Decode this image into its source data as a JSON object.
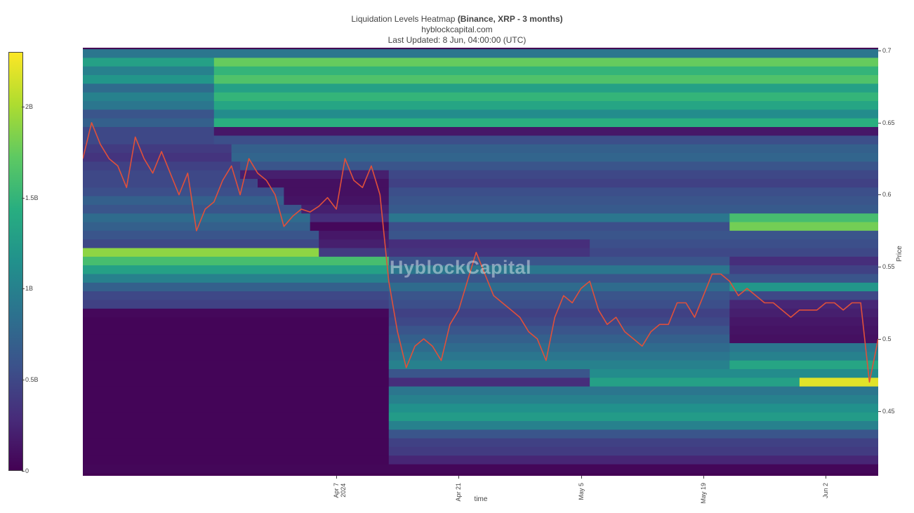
{
  "header": {
    "title_prefix": "Liquidation Levels Heatmap",
    "title_bold": "(Binance, XRP - 3 months)",
    "subtitle": "hyblockcapital.com",
    "updated": "Last Updated: 8 Jun, 04:00:00 (UTC)"
  },
  "watermark": "HyblockCapital",
  "colors": {
    "scale": [
      "#440154",
      "#472c7a",
      "#3b528b",
      "#2c728e",
      "#21918c",
      "#28ae80",
      "#5ec962",
      "#addc30",
      "#fde725"
    ],
    "candle": "#e0503a"
  },
  "chart_data": {
    "type": "heatmap",
    "title": "Liquidation Levels Heatmap (Binance, XRP - 3 months)",
    "xlabel": "time",
    "ylabel": "Price",
    "x_ticks": [
      "Apr 7\n2024",
      "Apr 21",
      "May 5",
      "May 19",
      "Jun 2"
    ],
    "y_ticks": [
      "0.7",
      "0.65",
      "0.6",
      "0.55",
      "0.5",
      "0.45"
    ],
    "ylim": [
      0.405,
      0.702
    ],
    "xlim": [
      "2024-03-09",
      "2024-06-08"
    ],
    "colorbar": {
      "ticks": [
        "0",
        "0.5B",
        "1B",
        "1.5B",
        "2B"
      ],
      "range": [
        0,
        2.3
      ]
    },
    "bands": [
      {
        "price": 0.698,
        "segments": [
          [
            "2024-03-09",
            "2024-06-08",
            0.9
          ]
        ]
      },
      {
        "price": 0.692,
        "segments": [
          [
            "2024-03-09",
            "2024-03-24",
            1.3
          ],
          [
            "2024-03-24",
            "2024-06-08",
            1.75
          ]
        ]
      },
      {
        "price": 0.686,
        "segments": [
          [
            "2024-03-09",
            "2024-03-24",
            1.0
          ],
          [
            "2024-03-24",
            "2024-06-08",
            1.5
          ]
        ]
      },
      {
        "price": 0.68,
        "segments": [
          [
            "2024-03-09",
            "2024-03-24",
            1.2
          ],
          [
            "2024-03-24",
            "2024-06-08",
            1.65
          ]
        ]
      },
      {
        "price": 0.674,
        "segments": [
          [
            "2024-03-09",
            "2024-03-24",
            0.8
          ],
          [
            "2024-03-24",
            "2024-06-08",
            1.3
          ]
        ]
      },
      {
        "price": 0.668,
        "segments": [
          [
            "2024-03-09",
            "2024-03-24",
            1.0
          ],
          [
            "2024-03-24",
            "2024-06-08",
            1.5
          ]
        ]
      },
      {
        "price": 0.662,
        "segments": [
          [
            "2024-03-09",
            "2024-03-24",
            0.9
          ],
          [
            "2024-03-24",
            "2024-06-08",
            1.35
          ]
        ]
      },
      {
        "price": 0.656,
        "segments": [
          [
            "2024-03-09",
            "2024-03-24",
            0.6
          ],
          [
            "2024-03-24",
            "2024-06-08",
            1.1
          ]
        ]
      },
      {
        "price": 0.65,
        "segments": [
          [
            "2024-03-09",
            "2024-03-24",
            0.7
          ],
          [
            "2024-03-24",
            "2024-06-08",
            1.45
          ]
        ]
      },
      {
        "price": 0.644,
        "segments": [
          [
            "2024-03-09",
            "2024-03-24",
            0.5
          ],
          [
            "2024-03-24",
            "2024-06-08",
            0.15
          ]
        ]
      },
      {
        "price": 0.638,
        "segments": [
          [
            "2024-03-09",
            "2024-03-24",
            0.5
          ],
          [
            "2024-03-24",
            "2024-06-08",
            0.55
          ]
        ]
      },
      {
        "price": 0.632,
        "segments": [
          [
            "2024-03-09",
            "2024-03-26",
            0.4
          ],
          [
            "2024-03-26",
            "2024-06-08",
            0.7
          ]
        ]
      },
      {
        "price": 0.626,
        "segments": [
          [
            "2024-03-09",
            "2024-03-26",
            0.35
          ],
          [
            "2024-03-26",
            "2024-06-08",
            0.75
          ]
        ]
      },
      {
        "price": 0.62,
        "segments": [
          [
            "2024-03-09",
            "2024-03-27",
            0.45
          ],
          [
            "2024-03-27",
            "2024-06-08",
            0.6
          ]
        ]
      },
      {
        "price": 0.614,
        "segments": [
          [
            "2024-03-09",
            "2024-03-27",
            0.5
          ],
          [
            "2024-03-27",
            "2024-04-13",
            0.2
          ],
          [
            "2024-04-13",
            "2024-06-08",
            0.5
          ]
        ]
      },
      {
        "price": 0.608,
        "segments": [
          [
            "2024-03-09",
            "2024-03-29",
            0.5
          ],
          [
            "2024-03-29",
            "2024-04-13",
            0.1
          ],
          [
            "2024-04-13",
            "2024-06-08",
            0.45
          ]
        ]
      },
      {
        "price": 0.602,
        "segments": [
          [
            "2024-03-09",
            "2024-04-01",
            0.55
          ],
          [
            "2024-04-01",
            "2024-04-13",
            0.1
          ],
          [
            "2024-04-13",
            "2024-06-08",
            0.55
          ]
        ]
      },
      {
        "price": 0.596,
        "segments": [
          [
            "2024-03-09",
            "2024-04-01",
            0.7
          ],
          [
            "2024-04-01",
            "2024-04-13",
            0.12
          ],
          [
            "2024-04-13",
            "2024-06-08",
            0.6
          ]
        ]
      },
      {
        "price": 0.59,
        "segments": [
          [
            "2024-03-09",
            "2024-04-03",
            0.6
          ],
          [
            "2024-04-03",
            "2024-04-13",
            0.2
          ],
          [
            "2024-04-13",
            "2024-06-08",
            0.65
          ]
        ]
      },
      {
        "price": 0.584,
        "segments": [
          [
            "2024-03-09",
            "2024-04-04",
            0.8
          ],
          [
            "2024-04-04",
            "2024-04-13",
            0.3
          ],
          [
            "2024-04-13",
            "2024-05-22",
            0.9
          ],
          [
            "2024-05-22",
            "2024-06-08",
            1.6
          ]
        ]
      },
      {
        "price": 0.578,
        "segments": [
          [
            "2024-03-09",
            "2024-04-04",
            0.7
          ],
          [
            "2024-04-04",
            "2024-04-13",
            0.05
          ],
          [
            "2024-04-13",
            "2024-05-22",
            0.55
          ],
          [
            "2024-05-22",
            "2024-06-08",
            1.8
          ]
        ]
      },
      {
        "price": 0.572,
        "segments": [
          [
            "2024-03-09",
            "2024-04-05",
            0.6
          ],
          [
            "2024-04-05",
            "2024-04-13",
            0.15
          ],
          [
            "2024-04-13",
            "2024-06-08",
            0.6
          ]
        ]
      },
      {
        "price": 0.566,
        "segments": [
          [
            "2024-03-09",
            "2024-04-05",
            0.5
          ],
          [
            "2024-04-05",
            "2024-04-13",
            0.2
          ],
          [
            "2024-04-13",
            "2024-05-06",
            0.3
          ],
          [
            "2024-05-06",
            "2024-06-08",
            0.55
          ]
        ]
      },
      {
        "price": 0.56,
        "segments": [
          [
            "2024-03-09",
            "2024-04-05",
            1.9
          ],
          [
            "2024-04-05",
            "2024-04-13",
            0.4
          ],
          [
            "2024-04-13",
            "2024-05-06",
            0.35
          ],
          [
            "2024-05-06",
            "2024-06-08",
            0.5
          ]
        ]
      },
      {
        "price": 0.554,
        "segments": [
          [
            "2024-03-09",
            "2024-04-13",
            1.6
          ],
          [
            "2024-04-13",
            "2024-05-22",
            0.6
          ],
          [
            "2024-05-22",
            "2024-06-08",
            0.3
          ]
        ]
      },
      {
        "price": 0.548,
        "segments": [
          [
            "2024-03-09",
            "2024-04-13",
            1.3
          ],
          [
            "2024-04-13",
            "2024-05-22",
            0.9
          ],
          [
            "2024-05-22",
            "2024-06-08",
            0.45
          ]
        ]
      },
      {
        "price": 0.542,
        "segments": [
          [
            "2024-03-09",
            "2024-04-13",
            1.0
          ],
          [
            "2024-04-13",
            "2024-05-22",
            0.6
          ],
          [
            "2024-05-22",
            "2024-06-08",
            0.6
          ]
        ]
      },
      {
        "price": 0.536,
        "segments": [
          [
            "2024-03-09",
            "2024-04-13",
            0.7
          ],
          [
            "2024-04-13",
            "2024-05-22",
            0.8
          ],
          [
            "2024-05-22",
            "2024-06-08",
            1.2
          ]
        ]
      },
      {
        "price": 0.53,
        "segments": [
          [
            "2024-03-09",
            "2024-04-13",
            0.5
          ],
          [
            "2024-04-13",
            "2024-05-22",
            0.6
          ],
          [
            "2024-05-22",
            "2024-06-08",
            0.5
          ]
        ]
      },
      {
        "price": 0.524,
        "segments": [
          [
            "2024-03-09",
            "2024-04-13",
            0.45
          ],
          [
            "2024-04-13",
            "2024-05-22",
            0.55
          ],
          [
            "2024-05-22",
            "2024-06-08",
            0.25
          ]
        ]
      },
      {
        "price": 0.518,
        "segments": [
          [
            "2024-03-09",
            "2024-04-13",
            0.05
          ],
          [
            "2024-04-13",
            "2024-05-22",
            0.45
          ],
          [
            "2024-05-22",
            "2024-06-08",
            0.2
          ]
        ]
      },
      {
        "price": 0.512,
        "segments": [
          [
            "2024-03-09",
            "2024-04-13",
            0.03
          ],
          [
            "2024-04-13",
            "2024-05-22",
            0.5
          ],
          [
            "2024-05-22",
            "2024-06-08",
            0.15
          ]
        ]
      },
      {
        "price": 0.506,
        "segments": [
          [
            "2024-03-09",
            "2024-04-13",
            0.03
          ],
          [
            "2024-04-13",
            "2024-05-22",
            0.6
          ],
          [
            "2024-05-22",
            "2024-06-08",
            0.12
          ]
        ]
      },
      {
        "price": 0.5,
        "segments": [
          [
            "2024-03-09",
            "2024-04-13",
            0.03
          ],
          [
            "2024-04-13",
            "2024-05-22",
            0.7
          ],
          [
            "2024-05-22",
            "2024-06-08",
            0.1
          ]
        ]
      },
      {
        "price": 0.494,
        "segments": [
          [
            "2024-03-09",
            "2024-04-13",
            0.03
          ],
          [
            "2024-04-13",
            "2024-05-22",
            0.8
          ],
          [
            "2024-05-22",
            "2024-06-08",
            0.9
          ]
        ]
      },
      {
        "price": 0.488,
        "segments": [
          [
            "2024-03-09",
            "2024-04-13",
            0.03
          ],
          [
            "2024-04-13",
            "2024-05-22",
            0.9
          ],
          [
            "2024-05-22",
            "2024-06-08",
            1.0
          ]
        ]
      },
      {
        "price": 0.482,
        "segments": [
          [
            "2024-03-09",
            "2024-04-13",
            0.03
          ],
          [
            "2024-04-13",
            "2024-05-22",
            1.0
          ],
          [
            "2024-05-22",
            "2024-06-08",
            1.35
          ]
        ]
      },
      {
        "price": 0.476,
        "segments": [
          [
            "2024-03-09",
            "2024-04-13",
            0.03
          ],
          [
            "2024-04-13",
            "2024-05-06",
            0.6
          ],
          [
            "2024-05-06",
            "2024-06-08",
            1.1
          ]
        ]
      },
      {
        "price": 0.47,
        "segments": [
          [
            "2024-03-09",
            "2024-04-13",
            0.03
          ],
          [
            "2024-04-13",
            "2024-05-06",
            0.3
          ],
          [
            "2024-05-06",
            "2024-05-30",
            1.3
          ],
          [
            "2024-05-30",
            "2024-06-08",
            2.2
          ]
        ]
      },
      {
        "price": 0.464,
        "segments": [
          [
            "2024-03-09",
            "2024-04-13",
            0.03
          ],
          [
            "2024-04-13",
            "2024-06-08",
            0.9
          ]
        ]
      },
      {
        "price": 0.458,
        "segments": [
          [
            "2024-03-09",
            "2024-04-13",
            0.03
          ],
          [
            "2024-04-13",
            "2024-06-08",
            1.0
          ]
        ]
      },
      {
        "price": 0.452,
        "segments": [
          [
            "2024-03-09",
            "2024-04-13",
            0.03
          ],
          [
            "2024-04-13",
            "2024-06-08",
            1.15
          ]
        ]
      },
      {
        "price": 0.446,
        "segments": [
          [
            "2024-03-09",
            "2024-04-13",
            0.03
          ],
          [
            "2024-04-13",
            "2024-06-08",
            1.25
          ]
        ]
      },
      {
        "price": 0.44,
        "segments": [
          [
            "2024-03-09",
            "2024-04-13",
            0.03
          ],
          [
            "2024-04-13",
            "2024-06-08",
            1.0
          ]
        ]
      },
      {
        "price": 0.434,
        "segments": [
          [
            "2024-03-09",
            "2024-04-13",
            0.03
          ],
          [
            "2024-04-13",
            "2024-06-08",
            0.6
          ]
        ]
      },
      {
        "price": 0.428,
        "segments": [
          [
            "2024-03-09",
            "2024-04-13",
            0.03
          ],
          [
            "2024-04-13",
            "2024-06-08",
            0.45
          ]
        ]
      },
      {
        "price": 0.422,
        "segments": [
          [
            "2024-03-09",
            "2024-04-13",
            0.03
          ],
          [
            "2024-04-13",
            "2024-06-08",
            0.4
          ]
        ]
      },
      {
        "price": 0.416,
        "segments": [
          [
            "2024-03-09",
            "2024-04-13",
            0.03
          ],
          [
            "2024-04-13",
            "2024-06-08",
            0.25
          ]
        ]
      },
      {
        "price": 0.41,
        "segments": [
          [
            "2024-03-09",
            "2024-06-08",
            0.04
          ]
        ]
      }
    ],
    "price_series": {
      "name": "XRP price",
      "x": [
        "2024-03-09",
        "2024-03-10",
        "2024-03-11",
        "2024-03-12",
        "2024-03-13",
        "2024-03-14",
        "2024-03-15",
        "2024-03-16",
        "2024-03-17",
        "2024-03-18",
        "2024-03-19",
        "2024-03-20",
        "2024-03-21",
        "2024-03-22",
        "2024-03-23",
        "2024-03-24",
        "2024-03-25",
        "2024-03-26",
        "2024-03-27",
        "2024-03-28",
        "2024-03-29",
        "2024-03-30",
        "2024-03-31",
        "2024-04-01",
        "2024-04-02",
        "2024-04-03",
        "2024-04-04",
        "2024-04-05",
        "2024-04-06",
        "2024-04-07",
        "2024-04-08",
        "2024-04-09",
        "2024-04-10",
        "2024-04-11",
        "2024-04-12",
        "2024-04-13",
        "2024-04-14",
        "2024-04-15",
        "2024-04-16",
        "2024-04-17",
        "2024-04-18",
        "2024-04-19",
        "2024-04-20",
        "2024-04-21",
        "2024-04-22",
        "2024-04-23",
        "2024-04-24",
        "2024-04-25",
        "2024-04-26",
        "2024-04-27",
        "2024-04-28",
        "2024-04-29",
        "2024-04-30",
        "2024-05-01",
        "2024-05-02",
        "2024-05-03",
        "2024-05-04",
        "2024-05-05",
        "2024-05-06",
        "2024-05-07",
        "2024-05-08",
        "2024-05-09",
        "2024-05-10",
        "2024-05-11",
        "2024-05-12",
        "2024-05-13",
        "2024-05-14",
        "2024-05-15",
        "2024-05-16",
        "2024-05-17",
        "2024-05-18",
        "2024-05-19",
        "2024-05-20",
        "2024-05-21",
        "2024-05-22",
        "2024-05-23",
        "2024-05-24",
        "2024-05-25",
        "2024-05-26",
        "2024-05-27",
        "2024-05-28",
        "2024-05-29",
        "2024-05-30",
        "2024-05-31",
        "2024-06-01",
        "2024-06-02",
        "2024-06-03",
        "2024-06-04",
        "2024-06-05",
        "2024-06-06",
        "2024-06-07",
        "2024-06-08"
      ],
      "y": [
        0.625,
        0.65,
        0.635,
        0.625,
        0.62,
        0.605,
        0.64,
        0.625,
        0.615,
        0.63,
        0.615,
        0.6,
        0.615,
        0.575,
        0.59,
        0.595,
        0.61,
        0.62,
        0.6,
        0.625,
        0.615,
        0.61,
        0.6,
        0.578,
        0.585,
        0.59,
        0.588,
        0.592,
        0.598,
        0.59,
        0.625,
        0.61,
        0.605,
        0.62,
        0.6,
        0.54,
        0.505,
        0.48,
        0.495,
        0.5,
        0.495,
        0.485,
        0.51,
        0.52,
        0.54,
        0.56,
        0.545,
        0.53,
        0.525,
        0.52,
        0.515,
        0.505,
        0.5,
        0.485,
        0.515,
        0.53,
        0.525,
        0.535,
        0.54,
        0.52,
        0.51,
        0.515,
        0.505,
        0.5,
        0.495,
        0.505,
        0.51,
        0.51,
        0.525,
        0.525,
        0.515,
        0.53,
        0.545,
        0.545,
        0.54,
        0.53,
        0.535,
        0.53,
        0.525,
        0.525,
        0.52,
        0.515,
        0.52,
        0.52,
        0.52,
        0.525,
        0.525,
        0.52,
        0.525,
        0.525,
        0.47,
        0.5
      ]
    }
  }
}
